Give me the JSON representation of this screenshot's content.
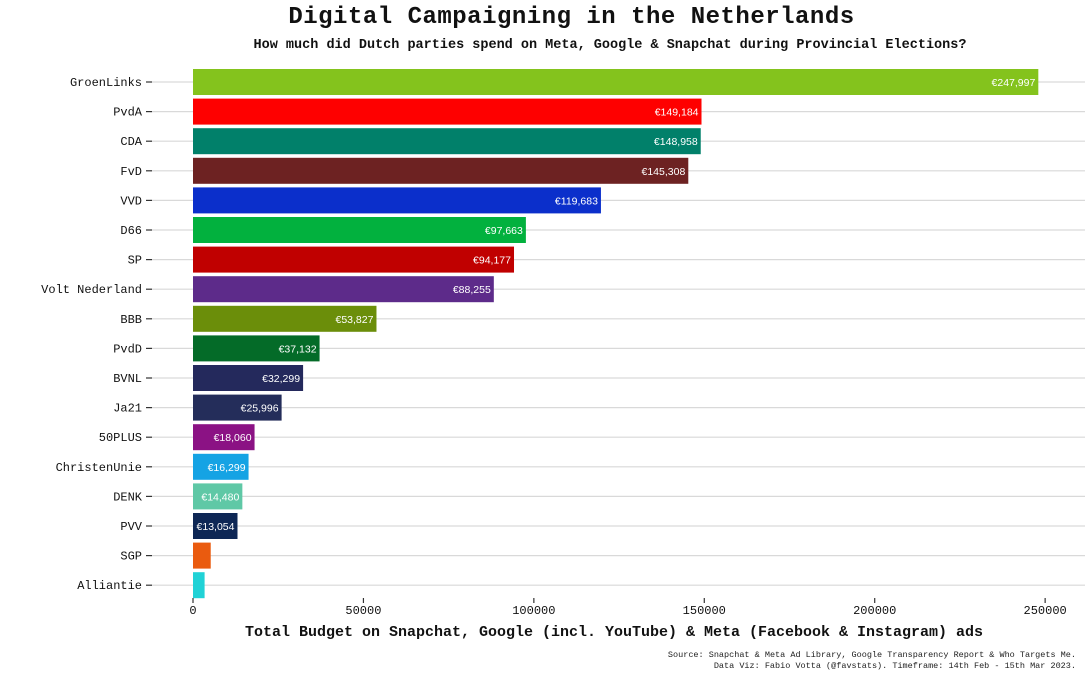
{
  "chart_data": {
    "type": "bar",
    "orientation": "horizontal",
    "title": "Digital Campaigning in the Netherlands",
    "subtitle": "How much did Dutch parties spend on Meta, Google & Snapchat during Provincial Elections?",
    "xlabel": "Total Budget on Snapchat, Google (incl. YouTube) & Meta (Facebook & Instagram) ads",
    "ylabel": "",
    "xlim": [
      0,
      257000
    ],
    "xticks": [
      0,
      50000,
      100000,
      150000,
      200000,
      250000
    ],
    "grid": "horizontal",
    "categories": [
      "GroenLinks",
      "PvdA",
      "CDA",
      "FvD",
      "VVD",
      "D66",
      "SP",
      "Volt Nederland",
      "BBB",
      "PvdD",
      "BVNL",
      "Ja21",
      "50PLUS",
      "ChristenUnie",
      "DENK",
      "PVV",
      "SGP",
      "Alliantie"
    ],
    "values": [
      247997,
      149184,
      148958,
      145308,
      119683,
      97663,
      94177,
      88255,
      53827,
      37132,
      32299,
      25996,
      18060,
      16299,
      14480,
      13054,
      5200,
      3400
    ],
    "value_labels": [
      "€247,997",
      "€149,184",
      "€148,958",
      "€145,308",
      "€119,683",
      "€97,663",
      "€94,177",
      "€88,255",
      "€53,827",
      "€37,132",
      "€32,299",
      "€25,996",
      "€18,060",
      "€16,299",
      "€14,480",
      "€13,054",
      "",
      ""
    ],
    "colors": [
      "#84c31d",
      "#fe0000",
      "#01806a",
      "#6d2222",
      "#0b2fcb",
      "#02b13e",
      "#c00000",
      "#5d2b8a",
      "#6b8e0a",
      "#046b28",
      "#24295c",
      "#242d5a",
      "#8b1284",
      "#15a3e4",
      "#5fc8a6",
      "#0e2755",
      "#ea5b0f",
      "#20d2d6"
    ]
  },
  "source": {
    "line1": "Source: Snapchat & Meta Ad Library, Google Transparency Report & Who Targets Me.",
    "line2": "Data Viz: Fabio Votta (@favstats). Timeframe: 14th Feb - 15th Mar 2023."
  }
}
